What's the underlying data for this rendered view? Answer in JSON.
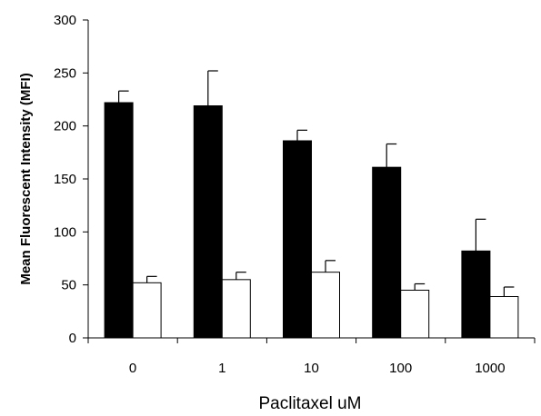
{
  "chart_data": {
    "type": "bar",
    "title": "",
    "xlabel": "Paclitaxel uM",
    "ylabel": "Mean Fluorescent Intensity (MFI)",
    "categories": [
      "0",
      "1",
      "10",
      "100",
      "1000"
    ],
    "ylim": [
      0,
      300
    ],
    "yticks": [
      "0",
      "50",
      "100",
      "150",
      "200",
      "250",
      "300"
    ],
    "grid": false,
    "legend": "none",
    "series": [
      {
        "color": "#000000",
        "values": [
          222,
          219,
          186,
          161,
          82
        ],
        "errors": [
          11,
          33,
          10,
          22,
          30
        ]
      },
      {
        "color": "#ffffff",
        "values": [
          52,
          55,
          62,
          45,
          39
        ],
        "errors": [
          6,
          7,
          11,
          6,
          9
        ]
      }
    ]
  }
}
